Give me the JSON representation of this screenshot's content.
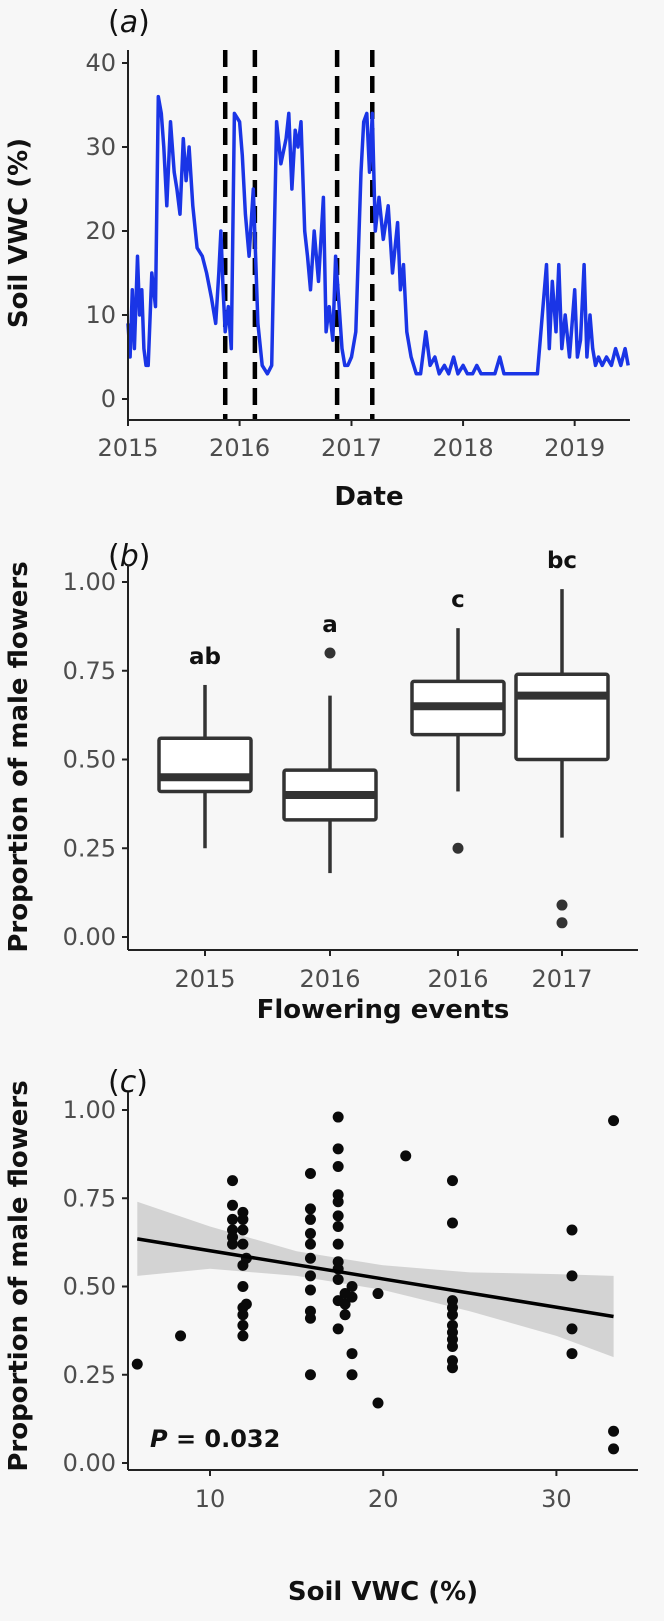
{
  "chart_data": [
    {
      "panel_label": "a",
      "type": "line",
      "xlabel": "Date",
      "ylabel": "Soil VWC (%)",
      "xticks": [
        "2015",
        "2016",
        "2017",
        "2018",
        "2019"
      ],
      "yticks": [
        "0",
        "10",
        "20",
        "30",
        "40"
      ],
      "xlim": [
        "2015-01-01",
        "2019-07-01"
      ],
      "ylim": [
        0,
        40
      ],
      "grid": false,
      "line_color": "#1a35e6",
      "vlines": [
        "2015-11-15",
        "2016-02-20",
        "2016-11-15",
        "2017-03-10"
      ],
      "x": [
        "2015-01-01",
        "2015-01-08",
        "2015-01-15",
        "2015-01-22",
        "2015-02-01",
        "2015-02-08",
        "2015-02-15",
        "2015-02-22",
        "2015-03-01",
        "2015-03-08",
        "2015-03-20",
        "2015-04-01",
        "2015-04-10",
        "2015-04-20",
        "2015-04-28",
        "2015-05-08",
        "2015-05-20",
        "2015-06-01",
        "2015-06-10",
        "2015-06-20",
        "2015-07-01",
        "2015-07-10",
        "2015-07-20",
        "2015-08-01",
        "2015-08-15",
        "2015-09-01",
        "2015-09-15",
        "2015-10-01",
        "2015-10-15",
        "2015-10-25",
        "2015-11-01",
        "2015-11-08",
        "2015-11-15",
        "2015-11-25",
        "2015-12-05",
        "2015-12-15",
        "2016-01-01",
        "2016-01-10",
        "2016-01-20",
        "2016-02-01",
        "2016-02-15",
        "2016-03-01",
        "2016-03-15",
        "2016-04-01",
        "2016-04-15",
        "2016-05-01",
        "2016-05-15",
        "2016-06-01",
        "2016-06-10",
        "2016-06-20",
        "2016-07-01",
        "2016-07-10",
        "2016-07-20",
        "2016-08-01",
        "2016-08-10",
        "2016-08-20",
        "2016-09-01",
        "2016-09-15",
        "2016-10-01",
        "2016-10-10",
        "2016-10-20",
        "2016-11-01",
        "2016-11-10",
        "2016-11-20",
        "2016-12-01",
        "2016-12-10",
        "2016-12-20",
        "2017-01-01",
        "2017-01-15",
        "2017-02-01",
        "2017-02-10",
        "2017-02-20",
        "2017-03-01",
        "2017-03-10",
        "2017-03-20",
        "2017-04-01",
        "2017-04-15",
        "2017-05-01",
        "2017-05-15",
        "2017-06-01",
        "2017-06-10",
        "2017-06-20",
        "2017-07-01",
        "2017-07-15",
        "2017-08-01",
        "2017-08-15",
        "2017-09-01",
        "2017-09-15",
        "2017-10-01",
        "2017-10-15",
        "2017-11-01",
        "2017-11-15",
        "2017-12-01",
        "2017-12-15",
        "2018-01-01",
        "2018-01-15",
        "2018-02-01",
        "2018-02-15",
        "2018-03-01",
        "2018-03-15",
        "2018-04-01",
        "2018-04-15",
        "2018-05-01",
        "2018-05-15",
        "2018-06-01",
        "2018-06-15",
        "2018-07-01",
        "2018-08-01",
        "2018-09-01",
        "2018-10-01",
        "2018-10-10",
        "2018-10-20",
        "2018-11-01",
        "2018-11-10",
        "2018-11-20",
        "2018-12-01",
        "2018-12-15",
        "2019-01-01",
        "2019-01-10",
        "2019-01-20",
        "2019-02-01",
        "2019-02-10",
        "2019-02-20",
        "2019-03-01",
        "2019-03-10",
        "2019-03-20",
        "2019-04-01",
        "2019-04-15",
        "2019-05-01",
        "2019-05-15",
        "2019-06-01",
        "2019-06-15",
        "2019-06-25"
      ],
      "y": [
        9,
        5,
        13,
        6,
        17,
        10,
        13,
        6,
        4,
        4,
        15,
        11,
        36,
        34,
        30,
        23,
        33,
        27,
        25,
        22,
        31,
        26,
        30,
        23,
        18,
        17,
        15,
        12,
        9,
        15,
        20,
        13,
        8,
        11,
        6,
        34,
        33,
        29,
        22,
        17,
        25,
        9,
        4,
        3,
        4,
        33,
        28,
        31,
        34,
        25,
        32,
        30,
        33,
        20,
        17,
        13,
        20,
        14,
        24,
        8,
        11,
        7,
        17,
        12,
        6,
        4,
        4,
        5,
        8,
        27,
        33,
        34,
        27,
        34,
        20,
        24,
        19,
        23,
        15,
        21,
        13,
        16,
        8,
        5,
        3,
        3,
        8,
        4,
        5,
        3,
        4,
        3,
        5,
        3,
        4,
        3,
        3,
        4,
        3,
        3,
        3,
        3,
        5,
        3,
        3,
        3,
        3,
        3,
        3,
        16,
        6,
        14,
        8,
        16,
        6,
        10,
        5,
        13,
        5,
        7,
        16,
        5,
        10,
        6,
        4,
        5,
        4,
        5,
        4,
        6,
        4,
        6,
        4
      ]
    },
    {
      "panel_label": "b",
      "type": "box",
      "xlabel": "Flowering events",
      "ylabel": "Proportion of male flowers",
      "categories": [
        "2015",
        "2016",
        "2016",
        "2017"
      ],
      "yticks": [
        "0.00",
        "0.25",
        "0.50",
        "0.75",
        "1.00"
      ],
      "ylim": [
        0,
        1
      ],
      "grid": false,
      "boxes": [
        {
          "min": 0.25,
          "q1": 0.41,
          "median": 0.45,
          "q3": 0.56,
          "max": 0.71,
          "outliers": [],
          "letter": "ab"
        },
        {
          "min": 0.18,
          "q1": 0.33,
          "median": 0.4,
          "q3": 0.47,
          "max": 0.68,
          "outliers": [
            0.8
          ],
          "letter": "a"
        },
        {
          "min": 0.41,
          "q1": 0.57,
          "median": 0.65,
          "q3": 0.72,
          "max": 0.87,
          "outliers": [
            0.25
          ],
          "letter": "c"
        },
        {
          "min": 0.28,
          "q1": 0.5,
          "median": 0.68,
          "q3": 0.74,
          "max": 0.98,
          "outliers": [
            0.09,
            0.04
          ],
          "letter": "bc"
        }
      ]
    },
    {
      "panel_label": "c",
      "type": "scatter",
      "xlabel": "Soil VWC (%)",
      "ylabel": "Proportion of male flowers",
      "xticks": [
        "10",
        "20",
        "30"
      ],
      "yticks": [
        "0.00",
        "0.25",
        "0.50",
        "0.75",
        "1.00"
      ],
      "xlim": [
        4.5,
        34.5
      ],
      "ylim": [
        0,
        1
      ],
      "grid": false,
      "annotation": {
        "italic": "P",
        "rest": " = 0.032"
      },
      "fit_line": {
        "x": [
          5.8,
          33.3
        ],
        "y": [
          0.635,
          0.415
        ]
      },
      "confidence_band": {
        "x": [
          5.8,
          10,
          15,
          20,
          25,
          30,
          33.3
        ],
        "lower": [
          0.53,
          0.55,
          0.53,
          0.49,
          0.43,
          0.36,
          0.3
        ],
        "upper": [
          0.74,
          0.67,
          0.6,
          0.56,
          0.54,
          0.535,
          0.53
        ]
      },
      "points": [
        {
          "x": 5.8,
          "y": 0.28
        },
        {
          "x": 8.3,
          "y": 0.36
        },
        {
          "x": 11.3,
          "y": 0.8
        },
        {
          "x": 11.3,
          "y": 0.73
        },
        {
          "x": 11.3,
          "y": 0.69
        },
        {
          "x": 11.3,
          "y": 0.66
        },
        {
          "x": 11.3,
          "y": 0.64
        },
        {
          "x": 11.3,
          "y": 0.62
        },
        {
          "x": 11.9,
          "y": 0.71
        },
        {
          "x": 11.9,
          "y": 0.69
        },
        {
          "x": 11.9,
          "y": 0.66
        },
        {
          "x": 11.9,
          "y": 0.62
        },
        {
          "x": 11.9,
          "y": 0.56
        },
        {
          "x": 11.9,
          "y": 0.5
        },
        {
          "x": 11.9,
          "y": 0.44
        },
        {
          "x": 11.9,
          "y": 0.42
        },
        {
          "x": 11.9,
          "y": 0.39
        },
        {
          "x": 11.9,
          "y": 0.36
        },
        {
          "x": 12.1,
          "y": 0.58
        },
        {
          "x": 12.1,
          "y": 0.45
        },
        {
          "x": 15.8,
          "y": 0.82
        },
        {
          "x": 15.8,
          "y": 0.72
        },
        {
          "x": 15.8,
          "y": 0.69
        },
        {
          "x": 15.8,
          "y": 0.65
        },
        {
          "x": 15.8,
          "y": 0.62
        },
        {
          "x": 15.8,
          "y": 0.58
        },
        {
          "x": 15.8,
          "y": 0.53
        },
        {
          "x": 15.8,
          "y": 0.49
        },
        {
          "x": 15.8,
          "y": 0.43
        },
        {
          "x": 15.8,
          "y": 0.41
        },
        {
          "x": 15.8,
          "y": 0.25
        },
        {
          "x": 17.4,
          "y": 0.98
        },
        {
          "x": 17.4,
          "y": 0.89
        },
        {
          "x": 17.4,
          "y": 0.84
        },
        {
          "x": 17.4,
          "y": 0.76
        },
        {
          "x": 17.4,
          "y": 0.74
        },
        {
          "x": 17.4,
          "y": 0.7
        },
        {
          "x": 17.4,
          "y": 0.67
        },
        {
          "x": 17.4,
          "y": 0.62
        },
        {
          "x": 17.4,
          "y": 0.57
        },
        {
          "x": 17.4,
          "y": 0.55
        },
        {
          "x": 17.4,
          "y": 0.52
        },
        {
          "x": 17.4,
          "y": 0.46
        },
        {
          "x": 17.4,
          "y": 0.38
        },
        {
          "x": 17.8,
          "y": 0.48
        },
        {
          "x": 17.8,
          "y": 0.45
        },
        {
          "x": 17.8,
          "y": 0.42
        },
        {
          "x": 18.2,
          "y": 0.5
        },
        {
          "x": 18.2,
          "y": 0.47
        },
        {
          "x": 18.2,
          "y": 0.31
        },
        {
          "x": 18.2,
          "y": 0.25
        },
        {
          "x": 19.7,
          "y": 0.48
        },
        {
          "x": 19.7,
          "y": 0.17
        },
        {
          "x": 21.3,
          "y": 0.87
        },
        {
          "x": 24.0,
          "y": 0.8
        },
        {
          "x": 24.0,
          "y": 0.68
        },
        {
          "x": 24.0,
          "y": 0.46
        },
        {
          "x": 24.0,
          "y": 0.44
        },
        {
          "x": 24.0,
          "y": 0.42
        },
        {
          "x": 24.0,
          "y": 0.39
        },
        {
          "x": 24.0,
          "y": 0.37
        },
        {
          "x": 24.0,
          "y": 0.35
        },
        {
          "x": 24.0,
          "y": 0.33
        },
        {
          "x": 24.0,
          "y": 0.29
        },
        {
          "x": 24.0,
          "y": 0.27
        },
        {
          "x": 30.9,
          "y": 0.66
        },
        {
          "x": 30.9,
          "y": 0.53
        },
        {
          "x": 30.9,
          "y": 0.38
        },
        {
          "x": 30.9,
          "y": 0.31
        },
        {
          "x": 33.3,
          "y": 0.97
        },
        {
          "x": 33.3,
          "y": 0.09
        },
        {
          "x": 33.3,
          "y": 0.04
        }
      ]
    }
  ]
}
